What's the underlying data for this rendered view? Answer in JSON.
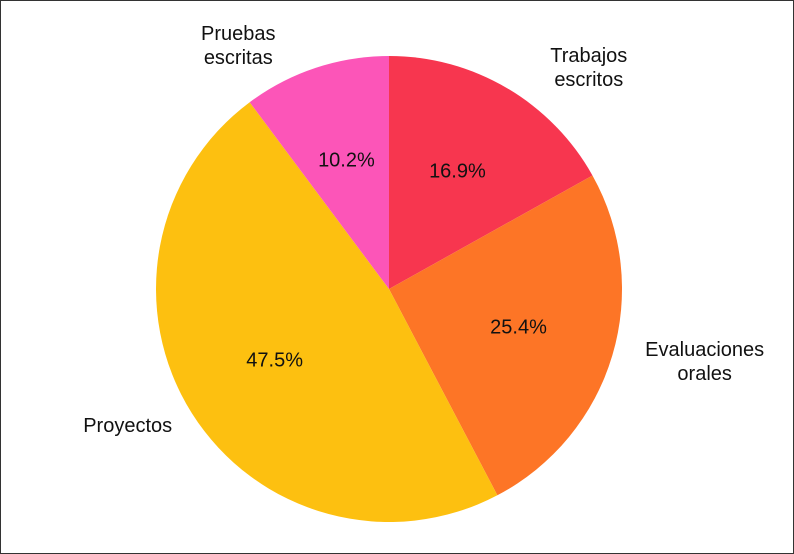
{
  "chart_data": {
    "type": "pie",
    "categories": [
      "Trabajos escritos",
      "Evaluaciones orales",
      "Proyectos",
      "Pruebas escritas"
    ],
    "values": [
      16.9,
      25.4,
      47.5,
      10.2
    ],
    "value_labels": [
      "16.9%",
      "25.4%",
      "47.5%",
      "10.2%"
    ],
    "colors": [
      "#f7364f",
      "#fd7526",
      "#fdc010",
      "#fc55b8"
    ],
    "start_angle": 90,
    "direction": "clockwise"
  }
}
